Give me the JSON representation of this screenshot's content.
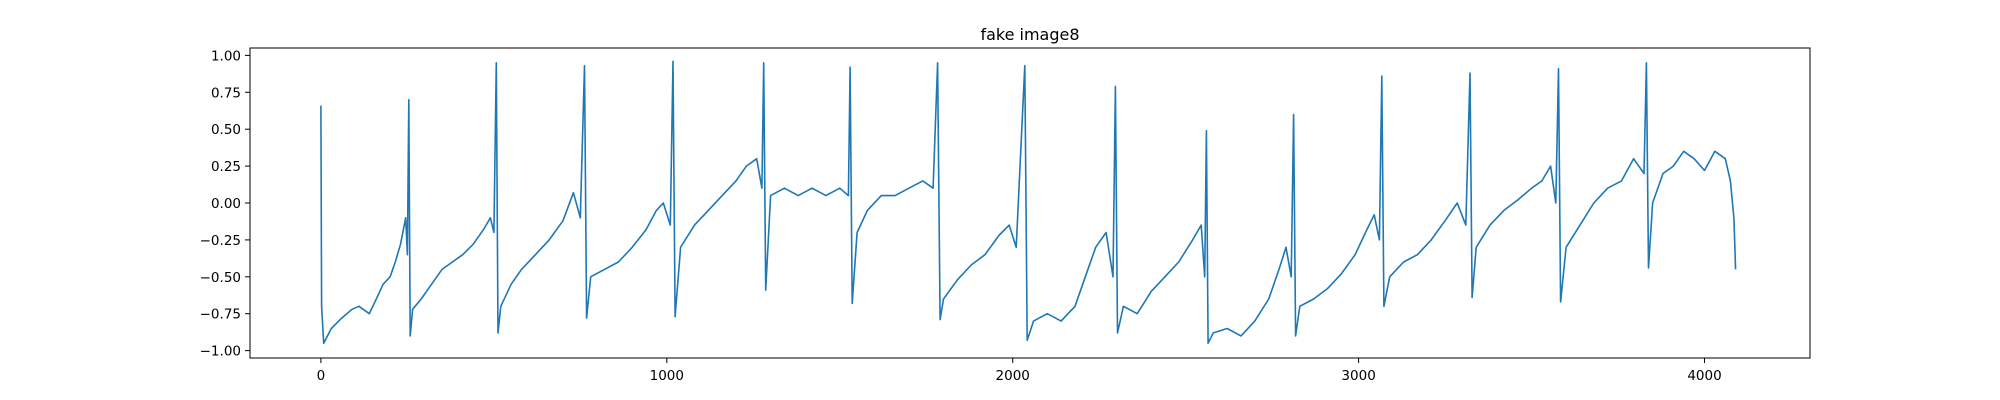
{
  "chart_data": {
    "type": "line",
    "title": "fake image8",
    "xlabel": "",
    "ylabel": "",
    "xlim": [
      -205,
      4305
    ],
    "ylim": [
      -1.05,
      1.05
    ],
    "xticks": [
      0,
      1000,
      2000,
      3000,
      4000
    ],
    "xtick_labels": [
      "0",
      "1000",
      "2000",
      "3000",
      "4000"
    ],
    "yticks": [
      -1.0,
      -0.75,
      -0.5,
      -0.25,
      0.0,
      0.25,
      0.5,
      0.75,
      1.0
    ],
    "ytick_labels": [
      "−1.00",
      "−0.75",
      "−0.50",
      "−0.25",
      "0.00",
      "0.25",
      "0.50",
      "0.75",
      "1.00"
    ],
    "grid": false,
    "series": [
      {
        "color": "#1f77b4",
        "points": [
          [
            0,
            0.66
          ],
          [
            2,
            -0.7
          ],
          [
            8,
            -0.95
          ],
          [
            30,
            -0.85
          ],
          [
            60,
            -0.78
          ],
          [
            90,
            -0.72
          ],
          [
            110,
            -0.7
          ],
          [
            140,
            -0.75
          ],
          [
            160,
            -0.65
          ],
          [
            180,
            -0.55
          ],
          [
            200,
            -0.5
          ],
          [
            215,
            -0.4
          ],
          [
            230,
            -0.28
          ],
          [
            245,
            -0.1
          ],
          [
            250,
            -0.35
          ],
          [
            254,
            0.7
          ],
          [
            258,
            -0.9
          ],
          [
            265,
            -0.72
          ],
          [
            290,
            -0.65
          ],
          [
            320,
            -0.55
          ],
          [
            350,
            -0.45
          ],
          [
            380,
            -0.4
          ],
          [
            410,
            -0.35
          ],
          [
            440,
            -0.28
          ],
          [
            470,
            -0.18
          ],
          [
            490,
            -0.1
          ],
          [
            500,
            -0.2
          ],
          [
            507,
            0.95
          ],
          [
            512,
            -0.88
          ],
          [
            520,
            -0.7
          ],
          [
            550,
            -0.55
          ],
          [
            580,
            -0.45
          ],
          [
            620,
            -0.35
          ],
          [
            660,
            -0.25
          ],
          [
            700,
            -0.12
          ],
          [
            730,
            0.07
          ],
          [
            750,
            -0.1
          ],
          [
            762,
            0.93
          ],
          [
            768,
            -0.78
          ],
          [
            780,
            -0.5
          ],
          [
            820,
            -0.45
          ],
          [
            860,
            -0.4
          ],
          [
            900,
            -0.3
          ],
          [
            940,
            -0.18
          ],
          [
            970,
            -0.05
          ],
          [
            990,
            0.0
          ],
          [
            1010,
            -0.15
          ],
          [
            1018,
            0.96
          ],
          [
            1024,
            -0.77
          ],
          [
            1040,
            -0.3
          ],
          [
            1080,
            -0.15
          ],
          [
            1120,
            -0.05
          ],
          [
            1160,
            0.05
          ],
          [
            1200,
            0.15
          ],
          [
            1230,
            0.25
          ],
          [
            1260,
            0.3
          ],
          [
            1275,
            0.1
          ],
          [
            1280,
            0.95
          ],
          [
            1286,
            -0.59
          ],
          [
            1300,
            0.05
          ],
          [
            1340,
            0.1
          ],
          [
            1380,
            0.05
          ],
          [
            1420,
            0.1
          ],
          [
            1460,
            0.05
          ],
          [
            1500,
            0.1
          ],
          [
            1525,
            0.05
          ],
          [
            1530,
            0.92
          ],
          [
            1536,
            -0.68
          ],
          [
            1550,
            -0.2
          ],
          [
            1580,
            -0.05
          ],
          [
            1620,
            0.05
          ],
          [
            1660,
            0.05
          ],
          [
            1700,
            0.1
          ],
          [
            1740,
            0.15
          ],
          [
            1770,
            0.1
          ],
          [
            1783,
            0.95
          ],
          [
            1790,
            -0.79
          ],
          [
            1800,
            -0.65
          ],
          [
            1840,
            -0.52
          ],
          [
            1880,
            -0.42
          ],
          [
            1920,
            -0.35
          ],
          [
            1960,
            -0.22
          ],
          [
            1990,
            -0.15
          ],
          [
            2010,
            -0.3
          ],
          [
            2035,
            0.93
          ],
          [
            2042,
            -0.93
          ],
          [
            2060,
            -0.8
          ],
          [
            2100,
            -0.75
          ],
          [
            2140,
            -0.8
          ],
          [
            2180,
            -0.7
          ],
          [
            2210,
            -0.5
          ],
          [
            2240,
            -0.3
          ],
          [
            2270,
            -0.2
          ],
          [
            2290,
            -0.5
          ],
          [
            2297,
            0.79
          ],
          [
            2303,
            -0.88
          ],
          [
            2320,
            -0.7
          ],
          [
            2360,
            -0.75
          ],
          [
            2400,
            -0.6
          ],
          [
            2440,
            -0.5
          ],
          [
            2480,
            -0.4
          ],
          [
            2520,
            -0.25
          ],
          [
            2545,
            -0.15
          ],
          [
            2555,
            -0.5
          ],
          [
            2560,
            0.49
          ],
          [
            2565,
            -0.95
          ],
          [
            2580,
            -0.88
          ],
          [
            2620,
            -0.85
          ],
          [
            2660,
            -0.9
          ],
          [
            2700,
            -0.8
          ],
          [
            2740,
            -0.65
          ],
          [
            2770,
            -0.45
          ],
          [
            2790,
            -0.3
          ],
          [
            2805,
            -0.5
          ],
          [
            2812,
            0.6
          ],
          [
            2818,
            -0.9
          ],
          [
            2830,
            -0.7
          ],
          [
            2870,
            -0.65
          ],
          [
            2910,
            -0.58
          ],
          [
            2950,
            -0.48
          ],
          [
            2990,
            -0.35
          ],
          [
            3020,
            -0.2
          ],
          [
            3045,
            -0.08
          ],
          [
            3060,
            -0.25
          ],
          [
            3067,
            0.86
          ],
          [
            3073,
            -0.7
          ],
          [
            3090,
            -0.5
          ],
          [
            3130,
            -0.4
          ],
          [
            3170,
            -0.35
          ],
          [
            3210,
            -0.25
          ],
          [
            3250,
            -0.12
          ],
          [
            3285,
            0.0
          ],
          [
            3310,
            -0.15
          ],
          [
            3322,
            0.88
          ],
          [
            3328,
            -0.64
          ],
          [
            3340,
            -0.3
          ],
          [
            3380,
            -0.15
          ],
          [
            3420,
            -0.05
          ],
          [
            3460,
            0.02
          ],
          [
            3500,
            0.1
          ],
          [
            3530,
            0.15
          ],
          [
            3555,
            0.25
          ],
          [
            3570,
            0.0
          ],
          [
            3578,
            0.91
          ],
          [
            3584,
            -0.67
          ],
          [
            3600,
            -0.3
          ],
          [
            3640,
            -0.15
          ],
          [
            3680,
            0.0
          ],
          [
            3720,
            0.1
          ],
          [
            3760,
            0.15
          ],
          [
            3795,
            0.3
          ],
          [
            3825,
            0.2
          ],
          [
            3832,
            0.95
          ],
          [
            3838,
            -0.44
          ],
          [
            3850,
            0.0
          ],
          [
            3880,
            0.2
          ],
          [
            3910,
            0.25
          ],
          [
            3940,
            0.35
          ],
          [
            3970,
            0.3
          ],
          [
            4000,
            0.22
          ],
          [
            4030,
            0.35
          ],
          [
            4060,
            0.3
          ],
          [
            4075,
            0.15
          ],
          [
            4085,
            -0.1
          ],
          [
            4090,
            -0.45
          ]
        ]
      }
    ]
  }
}
